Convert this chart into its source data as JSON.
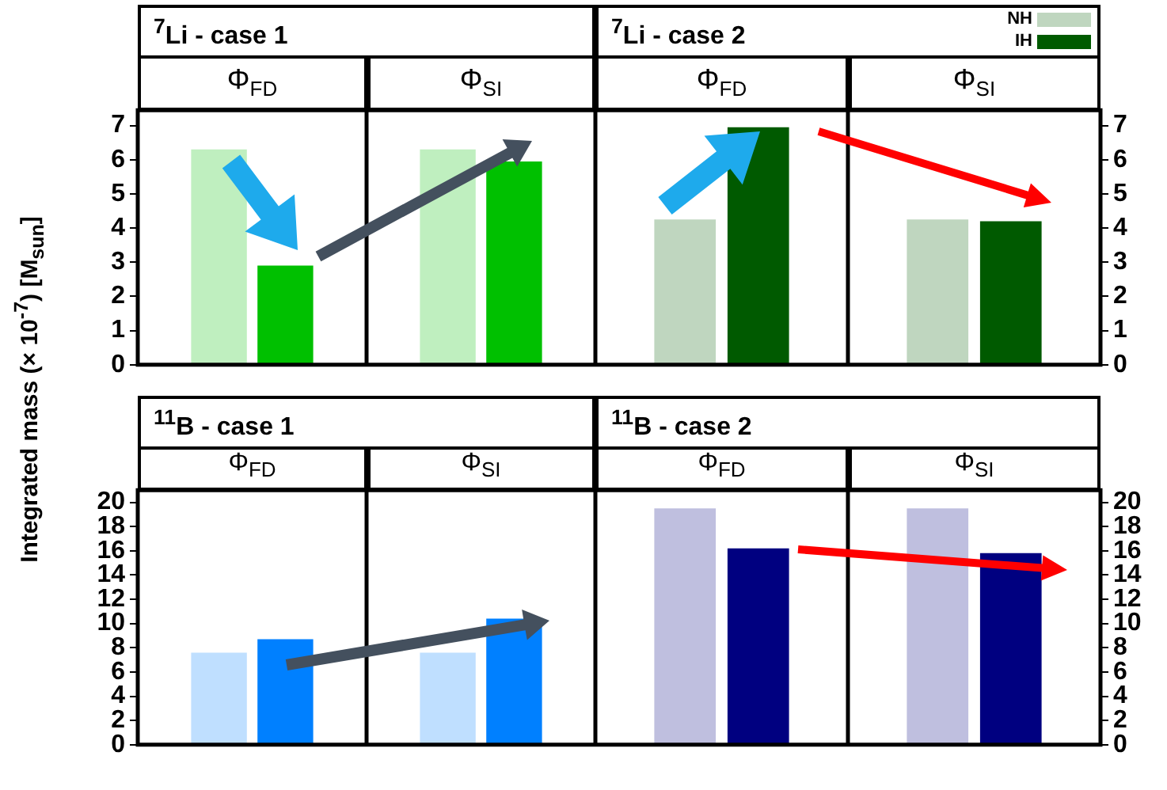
{
  "chart_data": [
    {
      "type": "bar",
      "title": "$^{7}$Li - case 1",
      "ylabel": "Integrated mass (× 10$^{-7}$) [M$_{sun}$]",
      "categories": [
        "Φ$_{FD}$",
        "Φ$_{SI}$"
      ],
      "series": [
        {
          "color": "#bfefbf",
          "values": [
            6.3,
            6.3
          ]
        },
        {
          "color": "#00c000",
          "values": [
            2.9,
            5.95
          ]
        }
      ],
      "ylim": [
        0,
        7.45
      ],
      "yticks": [
        0,
        1,
        2,
        3,
        4,
        5,
        6,
        7
      ]
    },
    {
      "type": "bar",
      "title": "$^{7}$Li - case 2",
      "categories": [
        "Φ$_{FD}$",
        "Φ$_{SI}$"
      ],
      "series": [
        {
          "name": "NH",
          "color": "#bfd6bf",
          "values": [
            4.25,
            4.25
          ]
        },
        {
          "name": "IH",
          "color": "#005a00",
          "values": [
            6.95,
            4.2
          ]
        }
      ],
      "ylim": [
        0,
        7.45
      ],
      "yticks": [
        0,
        1,
        2,
        3,
        4,
        5,
        6,
        7
      ],
      "legend": "top right"
    },
    {
      "type": "bar",
      "title": "$^{11}$B - case 1",
      "categories": [
        "Φ$_{FD}$",
        "Φ$_{SI}$"
      ],
      "series": [
        {
          "color": "#bfdfff",
          "values": [
            7.6,
            7.6
          ]
        },
        {
          "color": "#0080ff",
          "values": [
            8.7,
            10.4
          ]
        }
      ],
      "ylim": [
        0,
        21
      ],
      "yticks": [
        0,
        2,
        4,
        6,
        8,
        10,
        12,
        14,
        16,
        18,
        20
      ]
    },
    {
      "type": "bar",
      "title": "$^{11}$B - case 2",
      "categories": [
        "Φ$_{FD}$",
        "Φ$_{SI}$"
      ],
      "series": [
        {
          "color": "#bfbfdf",
          "values": [
            19.5,
            19.5
          ]
        },
        {
          "color": "#000080",
          "values": [
            16.2,
            15.8
          ]
        }
      ],
      "ylim": [
        0,
        21
      ],
      "yticks": [
        0,
        2,
        4,
        6,
        8,
        10,
        12,
        14,
        16,
        18,
        20
      ]
    }
  ]
}
